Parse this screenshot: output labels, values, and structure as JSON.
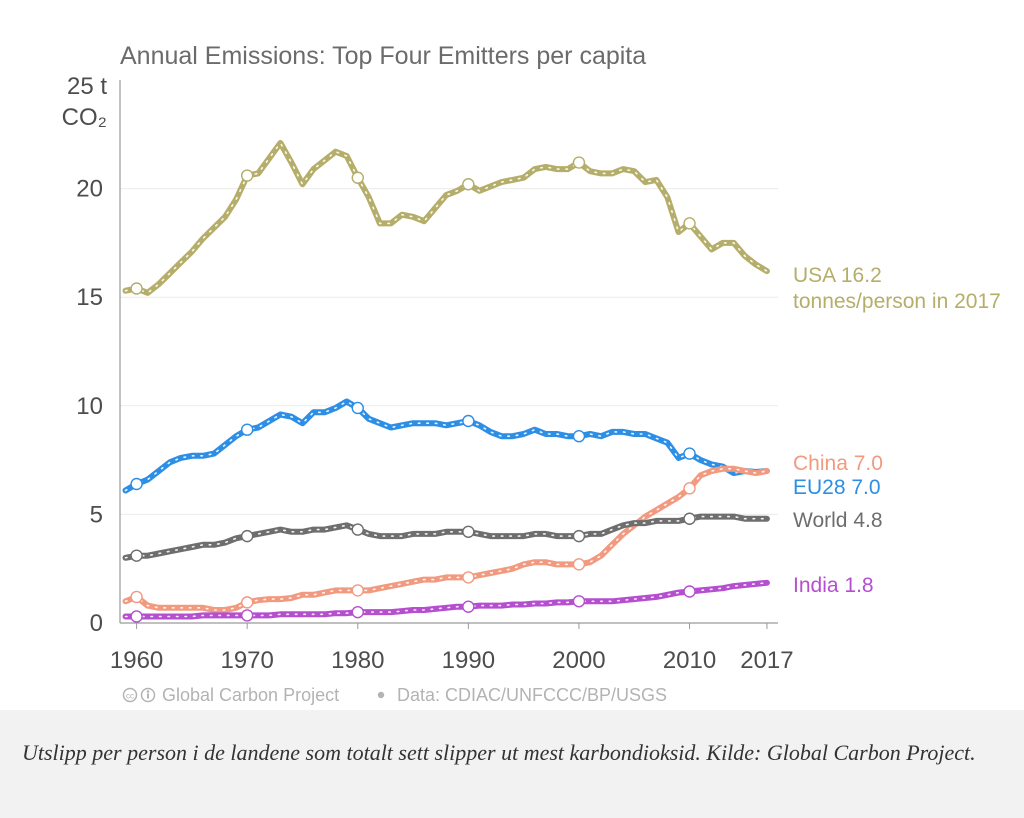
{
  "figure": {
    "title": "Annual Emissions: Top Four Emitters per capita",
    "credit_source": "Global Carbon Project",
    "credit_data": "Data: CDIAC/UNFCCC/BP/USGS"
  },
  "caption": "Utslipp per person i de landene som totalt sett slipper ut mest karbondioksid. Kilde: Global Carbon Project.",
  "chart_data": {
    "type": "line",
    "title": "Annual Emissions: Top Four Emitters per capita",
    "xlabel": "",
    "ylabel_top": "25 t",
    "ylabel_unit": "CO₂",
    "ylim": [
      0,
      25
    ],
    "xlim": [
      1958.5,
      2018
    ],
    "yticks": [
      0,
      5,
      10,
      15,
      20
    ],
    "xticks": [
      1960,
      1970,
      1980,
      1990,
      2000,
      2010,
      2017
    ],
    "grid": true,
    "legend": "end-of-line labels",
    "x": [
      1959,
      1960,
      1961,
      1962,
      1963,
      1964,
      1965,
      1966,
      1967,
      1968,
      1969,
      1970,
      1971,
      1972,
      1973,
      1974,
      1975,
      1976,
      1977,
      1978,
      1979,
      1980,
      1981,
      1982,
      1983,
      1984,
      1985,
      1986,
      1987,
      1988,
      1989,
      1990,
      1991,
      1992,
      1993,
      1994,
      1995,
      1996,
      1997,
      1998,
      1999,
      2000,
      2001,
      2002,
      2003,
      2004,
      2005,
      2006,
      2007,
      2008,
      2009,
      2010,
      2011,
      2012,
      2013,
      2014,
      2015,
      2016,
      2017
    ],
    "series": [
      {
        "name": "USA",
        "label_value": "16.2",
        "label_sub": "tonnes/person in 2017",
        "color": "#b5ae6a",
        "values": [
          15.3,
          15.4,
          15.2,
          15.6,
          16.1,
          16.6,
          17.1,
          17.7,
          18.2,
          18.7,
          19.5,
          20.6,
          20.7,
          21.4,
          22.1,
          21.2,
          20.2,
          20.9,
          21.3,
          21.7,
          21.5,
          20.5,
          19.6,
          18.4,
          18.4,
          18.8,
          18.7,
          18.5,
          19.1,
          19.7,
          19.9,
          20.2,
          19.9,
          20.1,
          20.3,
          20.4,
          20.5,
          20.9,
          21.0,
          20.9,
          20.9,
          21.2,
          20.8,
          20.7,
          20.7,
          20.9,
          20.8,
          20.3,
          20.4,
          19.6,
          18.0,
          18.4,
          17.8,
          17.2,
          17.5,
          17.5,
          16.9,
          16.5,
          16.2
        ],
        "marked_years": [
          1960,
          1970,
          1980,
          1990,
          2000,
          2010
        ]
      },
      {
        "name": "EU28",
        "label_value": "7.0",
        "color": "#2d8ee6",
        "values": [
          6.1,
          6.4,
          6.6,
          7.0,
          7.4,
          7.6,
          7.7,
          7.7,
          7.8,
          8.2,
          8.6,
          8.9,
          9.0,
          9.3,
          9.6,
          9.5,
          9.2,
          9.7,
          9.7,
          9.9,
          10.2,
          9.9,
          9.4,
          9.2,
          9.0,
          9.1,
          9.2,
          9.2,
          9.2,
          9.1,
          9.2,
          9.3,
          9.1,
          8.8,
          8.6,
          8.6,
          8.7,
          8.9,
          8.7,
          8.7,
          8.6,
          8.6,
          8.7,
          8.6,
          8.8,
          8.8,
          8.7,
          8.7,
          8.5,
          8.3,
          7.6,
          7.8,
          7.5,
          7.3,
          7.2,
          6.9,
          7.0,
          6.95,
          7.0
        ],
        "marked_years": [
          1960,
          1970,
          1980,
          1990,
          2000,
          2010
        ]
      },
      {
        "name": "China",
        "label_value": "7.0",
        "color": "#f29a80",
        "values": [
          1.0,
          1.2,
          0.8,
          0.7,
          0.7,
          0.7,
          0.7,
          0.7,
          0.6,
          0.6,
          0.7,
          0.95,
          1.05,
          1.1,
          1.1,
          1.15,
          1.3,
          1.3,
          1.4,
          1.5,
          1.5,
          1.5,
          1.5,
          1.6,
          1.7,
          1.8,
          1.9,
          2.0,
          2.0,
          2.1,
          2.1,
          2.1,
          2.2,
          2.3,
          2.4,
          2.5,
          2.7,
          2.8,
          2.8,
          2.7,
          2.7,
          2.7,
          2.8,
          3.1,
          3.6,
          4.1,
          4.5,
          4.9,
          5.2,
          5.5,
          5.8,
          6.2,
          6.8,
          7.0,
          7.1,
          7.1,
          7.0,
          6.9,
          7.0
        ],
        "marked_years": [
          1960,
          1970,
          1980,
          1990,
          2000,
          2010
        ]
      },
      {
        "name": "World",
        "label_value": "4.8",
        "color": "#6e6e6e",
        "values": [
          3.0,
          3.1,
          3.1,
          3.2,
          3.3,
          3.4,
          3.5,
          3.6,
          3.6,
          3.7,
          3.9,
          4.0,
          4.1,
          4.2,
          4.3,
          4.2,
          4.2,
          4.3,
          4.3,
          4.4,
          4.5,
          4.3,
          4.1,
          4.0,
          4.0,
          4.0,
          4.1,
          4.1,
          4.1,
          4.2,
          4.2,
          4.2,
          4.1,
          4.0,
          4.0,
          4.0,
          4.0,
          4.1,
          4.1,
          4.0,
          4.0,
          4.0,
          4.1,
          4.1,
          4.3,
          4.5,
          4.6,
          4.6,
          4.7,
          4.7,
          4.7,
          4.8,
          4.9,
          4.9,
          4.9,
          4.9,
          4.8,
          4.8,
          4.8
        ],
        "marked_years": [
          1960,
          1970,
          1980,
          1990,
          2000,
          2010
        ]
      },
      {
        "name": "India",
        "label_value": "1.8",
        "color": "#b54fd0",
        "values": [
          0.3,
          0.3,
          0.3,
          0.3,
          0.3,
          0.3,
          0.3,
          0.35,
          0.35,
          0.35,
          0.35,
          0.35,
          0.35,
          0.35,
          0.4,
          0.4,
          0.4,
          0.4,
          0.4,
          0.45,
          0.45,
          0.5,
          0.5,
          0.5,
          0.5,
          0.55,
          0.6,
          0.6,
          0.65,
          0.7,
          0.75,
          0.75,
          0.8,
          0.8,
          0.8,
          0.85,
          0.85,
          0.9,
          0.9,
          0.95,
          0.95,
          1.0,
          1.0,
          1.0,
          1.0,
          1.05,
          1.1,
          1.15,
          1.2,
          1.3,
          1.4,
          1.45,
          1.5,
          1.55,
          1.6,
          1.7,
          1.75,
          1.8,
          1.85
        ],
        "marked_years": [
          1960,
          1970,
          1980,
          1990,
          2000,
          2010
        ]
      }
    ]
  }
}
